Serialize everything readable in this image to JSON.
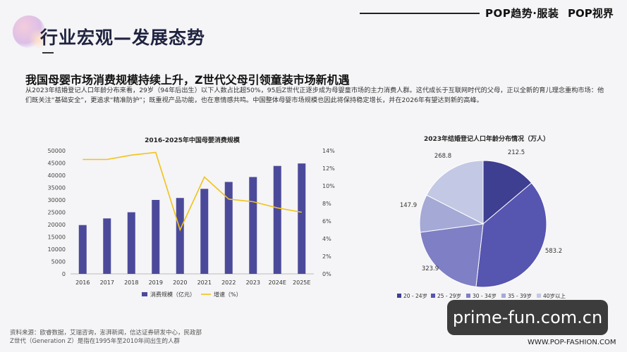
{
  "brand": {
    "left": "POP趋势·服装",
    "right": "POP视界"
  },
  "section_title": "行业宏观—发展态势",
  "headline": "我国母婴市场消费规模持续上升，Z世代父母引领童装市场新机遇",
  "body_text": "从2023年结婚登记人口年龄分布来看，29岁（94年后出生）以下人数占比超50%，95后Z世代正逐步成为母婴童市场的主力消费人群。这代成长于互联网时代的父母，正以全新的育儿理念重构市场：他们既关注“基础安全”，更追求“精准防护”；既重视产品功能，也在意情感共鸣。中国整体母婴市场规模也因此将保持稳定增长，并在2026年有望达到新的高峰。",
  "source_lines": [
    "资料来源：欧睿数据，艾瑞咨询，澎湃新闻，信达证券研发中心，民政部",
    "Z世代（Generation Z）是指在1995年至2010年间出生的人群"
  ],
  "footer_url": "WWW.POP-FASHION.COM",
  "watermark": "prime-fun.com.cn",
  "colors": {
    "bar": "#4b4a9a",
    "line": "#f0c318"
  },
  "chart_data": [
    {
      "type": "bar",
      "title": "2016-2025年中国母婴消费规模",
      "categories": [
        "2016",
        "2017",
        "2018",
        "2019",
        "2020",
        "2021",
        "2022",
        "2023",
        "2024E",
        "2025E"
      ],
      "series": [
        {
          "name": "消费规模（亿元）",
          "type": "bar",
          "axis": "left",
          "values": [
            19800,
            22500,
            25000,
            30000,
            30800,
            34500,
            37300,
            39300,
            43800,
            44800
          ]
        },
        {
          "name": "增速（%）",
          "type": "line",
          "axis": "right",
          "values": [
            13,
            13,
            13.5,
            13.8,
            5,
            11,
            8.5,
            8.2,
            7.5,
            7
          ]
        }
      ],
      "y_left": {
        "range": [
          0,
          50000
        ],
        "ticks": [
          "0",
          "5000",
          "10000",
          "15000",
          "20000",
          "25000",
          "30000",
          "35000",
          "40000",
          "45000",
          "50000"
        ]
      },
      "y_right": {
        "range": [
          0,
          14
        ],
        "ticks": [
          "0%",
          "2%",
          "4%",
          "6%",
          "8%",
          "10%",
          "12%",
          "14%"
        ]
      },
      "legend_position": "bottom"
    },
    {
      "type": "pie",
      "title": "2023年结婚登记人口年龄分布情况（万人）",
      "slices": [
        {
          "label": "20 - 24岁",
          "value": 212.5,
          "color": "#3e3f91"
        },
        {
          "label": "25 - 29岁",
          "value": 583.2,
          "color": "#5655b0"
        },
        {
          "label": "30 - 34岁",
          "value": 323.9,
          "color": "#7f7fc5"
        },
        {
          "label": "35 - 39岁",
          "value": 147.9,
          "color": "#a4a9d6"
        },
        {
          "label": "40岁以上",
          "value": 268.8,
          "color": "#c3c8e4"
        }
      ],
      "value_labels": [
        "212.5",
        "583.2",
        "323.9",
        "147.9",
        "268.8"
      ],
      "legend_position": "bottom"
    }
  ]
}
